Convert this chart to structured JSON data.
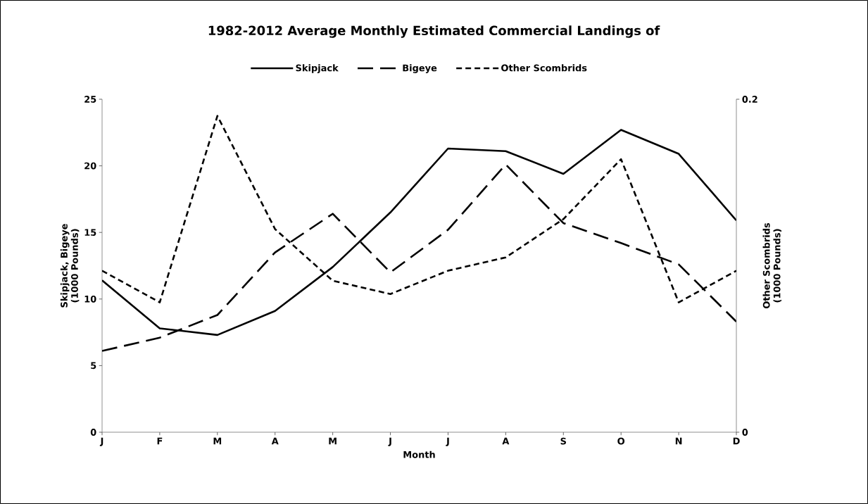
{
  "chart_data": {
    "type": "line",
    "title": "1982-2012 Average Monthly Estimated Commercial Landings of",
    "xlabel": "Month",
    "ylabel": "Skipjack, Bigeye (1000 Pounds)",
    "y2label": "Other Scombrids (1000 Pounds)",
    "categories": [
      "J",
      "F",
      "M",
      "A",
      "M",
      "J",
      "J",
      "A",
      "S",
      "O",
      "N",
      "D"
    ],
    "series": [
      {
        "name": "Skipjack",
        "color": "#000000",
        "line_style": "solid",
        "values": [
          11.4,
          7.8,
          7.3,
          9.1,
          12.4,
          16.5,
          21.3,
          21.1,
          19.4,
          22.7,
          20.9,
          15.9
        ]
      },
      {
        "name": "Bigeye",
        "color": "#000000",
        "line_style": "dashed",
        "values": [
          6.1,
          7.1,
          8.8,
          13.5,
          16.4,
          12.0,
          15.2,
          20.1,
          15.7,
          14.2,
          12.6,
          8.3
        ]
      },
      {
        "name": "Other Scombrids",
        "color": "#000000",
        "line_style": "dashed",
        "axis": "y2",
        "values": [
          0.097,
          0.078,
          0.19,
          0.122,
          0.091,
          0.083,
          0.097,
          0.105,
          0.128,
          0.164,
          0.078,
          0.097
        ]
      }
    ],
    "ylim": [
      0,
      25
    ],
    "yticks": [
      0,
      5,
      10,
      15,
      20,
      25
    ],
    "y2lim": [
      0,
      0.2
    ],
    "y2ticks": [
      0,
      0.2
    ],
    "legend": "top",
    "grid": false,
    "marker": "none"
  }
}
